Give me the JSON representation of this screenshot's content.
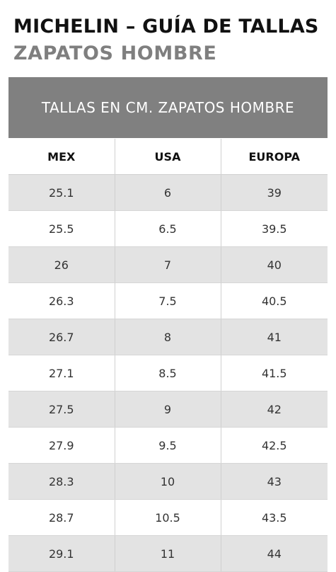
{
  "header": {
    "title": "MICHELIN – GUÍA DE TALLAS",
    "subtitle": "ZAPATOS HOMBRE"
  },
  "banner": {
    "text": "TALLAS EN CM. ZAPATOS HOMBRE"
  },
  "table": {
    "columns": [
      "MEX",
      "USA",
      "EUROPA"
    ],
    "rows": [
      [
        "25.1",
        "6",
        "39"
      ],
      [
        "25.5",
        "6.5",
        "39.5"
      ],
      [
        "26",
        "7",
        "40"
      ],
      [
        "26.3",
        "7.5",
        "40.5"
      ],
      [
        "26.7",
        "8",
        "41"
      ],
      [
        "27.1",
        "8.5",
        "41.5"
      ],
      [
        "27.5",
        "9",
        "42"
      ],
      [
        "27.9",
        "9.5",
        "42.5"
      ],
      [
        "28.3",
        "10",
        "43"
      ],
      [
        "28.7",
        "10.5",
        "43.5"
      ],
      [
        "29.1",
        "11",
        "44"
      ]
    ]
  },
  "colors": {
    "banner_background": "#808080",
    "stripe_row": "#e3e3e3",
    "subtitle_text": "#7f7f7f"
  }
}
